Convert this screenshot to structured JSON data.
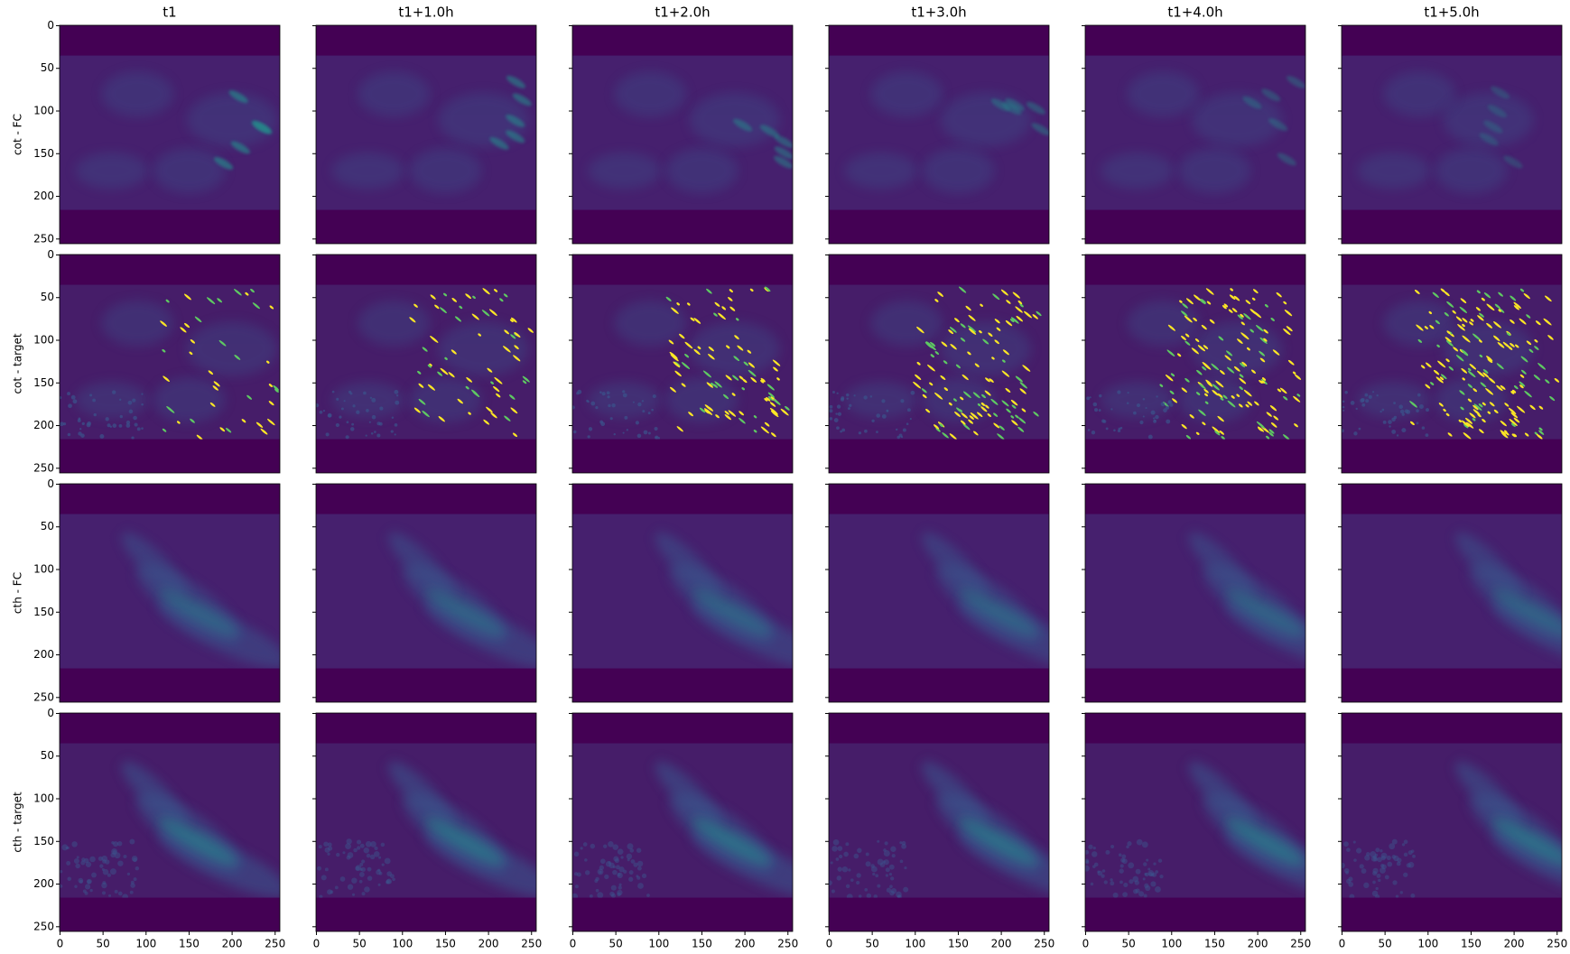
{
  "chart_data": {
    "type": "image-grid",
    "columns": [
      "t1",
      "t1+1.0h",
      "t1+2.0h",
      "t1+3.0h",
      "t1+4.0h",
      "t1+5.0h"
    ],
    "rows": [
      "cot - FC",
      "cot - target",
      "cth - FC",
      "cth - target"
    ],
    "xlim": [
      -0.5,
      255.5
    ],
    "ylim": [
      -0.5,
      255.5
    ],
    "y_inverted": true,
    "xticks": [
      0,
      50,
      100,
      150,
      200,
      250
    ],
    "yticks": [
      0,
      50,
      100,
      150,
      200,
      250
    ],
    "colormap": [
      "#440154",
      "#3b528b",
      "#21918c",
      "#5ec962",
      "#fde725"
    ]
  }
}
